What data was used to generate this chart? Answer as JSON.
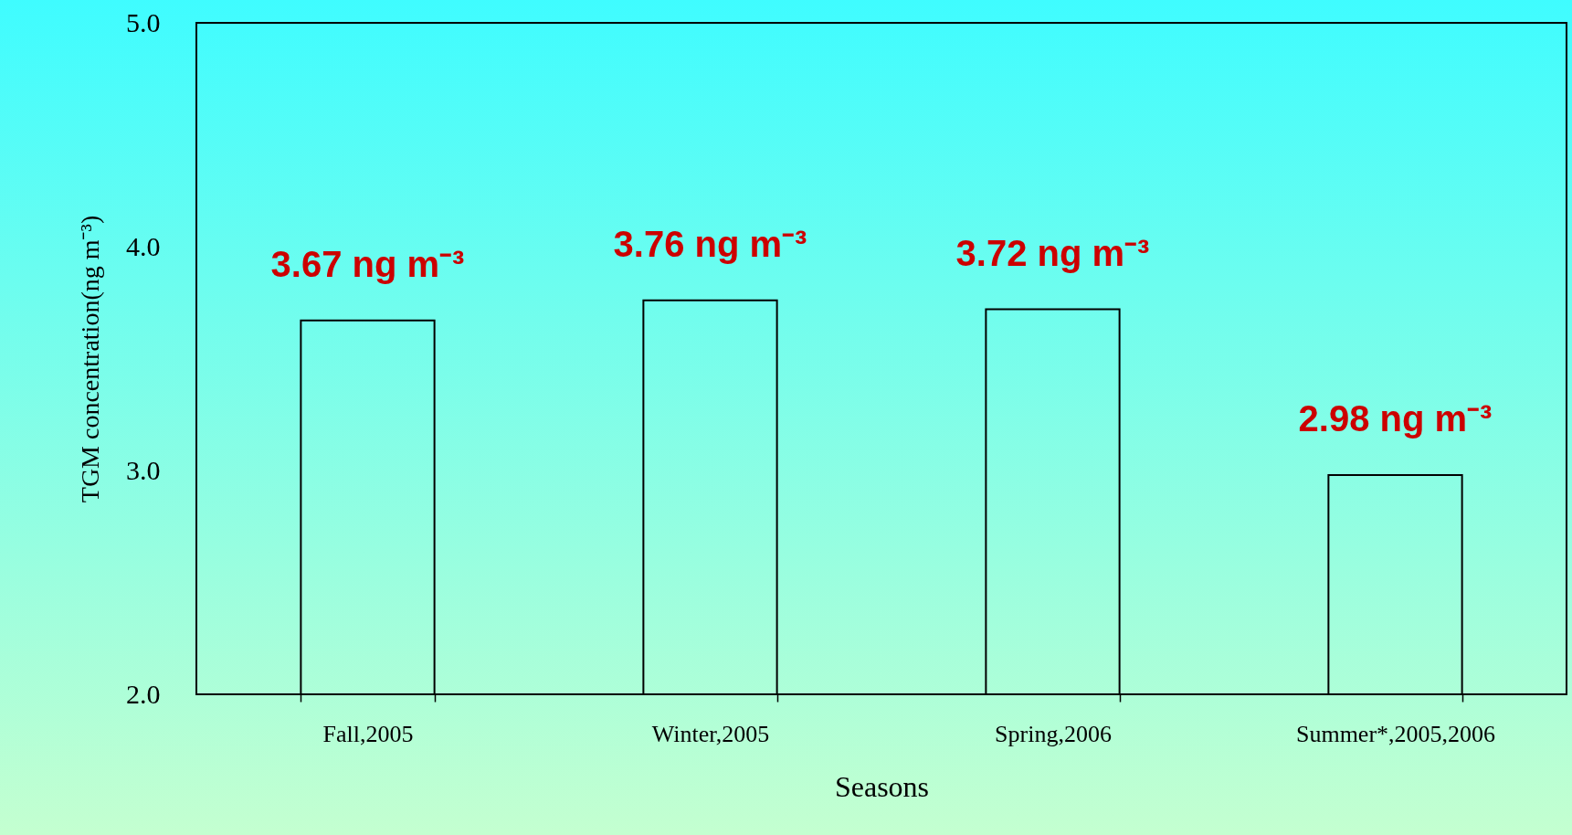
{
  "chart_data": {
    "type": "bar",
    "xlabel": "Seasons",
    "ylabel": "TGM concentration(ng m⁻³)",
    "categories": [
      "Fall,2005",
      "Winter,2005",
      "Spring,2006",
      "Summer*,2005,2006"
    ],
    "values": [
      3.67,
      3.76,
      3.72,
      2.98
    ],
    "value_labels": [
      "3.67 ng m⁻³",
      "3.76 ng m⁻³",
      "3.72 ng m⁻³",
      "2.98 ng m⁻³"
    ],
    "color": "#000000",
    "ylim": [
      2,
      5
    ],
    "yticks": [
      {
        "value": 2,
        "label": "2.0"
      },
      {
        "value": 3,
        "label": "3.0"
      },
      {
        "value": 4,
        "label": "4.0"
      },
      {
        "value": 5,
        "label": "5.0"
      }
    ],
    "grid": false
  }
}
